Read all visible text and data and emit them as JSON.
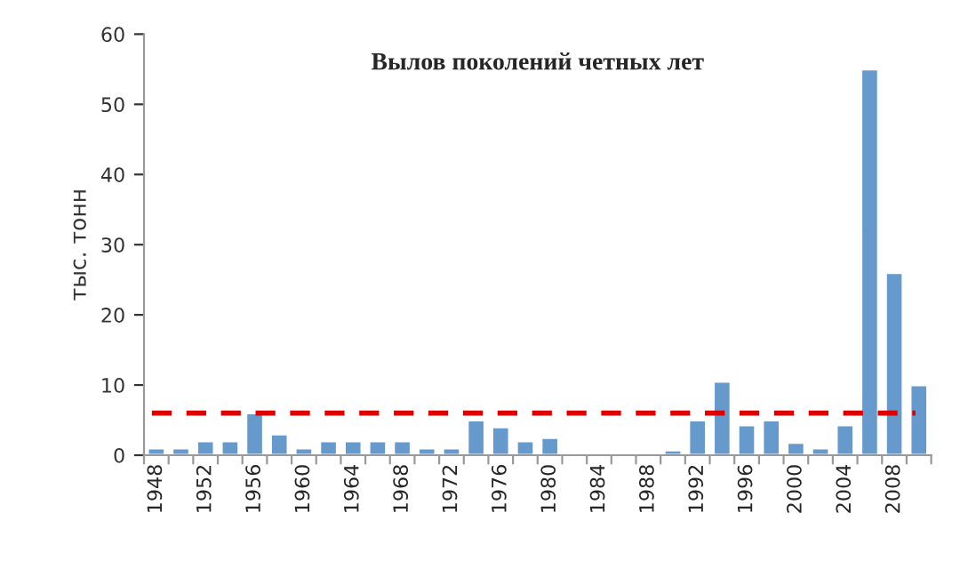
{
  "chart_data": {
    "type": "bar",
    "title": "Вылов поколений четных лет",
    "ylabel": "тыс. тонн",
    "categories": [
      "1948",
      null,
      "1952",
      null,
      "1956",
      null,
      "1960",
      null,
      "1964",
      null,
      "1968",
      null,
      "1972",
      null,
      "1976",
      null,
      "1980",
      null,
      "1984",
      null,
      "1988",
      null,
      "1992",
      null,
      "1996",
      null,
      "2000",
      null,
      "2004",
      null,
      "2008",
      null
    ],
    "values": [
      1,
      1,
      2,
      2,
      6,
      3,
      1,
      2,
      2,
      2,
      2,
      1,
      1,
      5,
      4,
      2,
      2.5,
      0.3,
      0.3,
      0.3,
      0.3,
      0.7,
      5,
      10.5,
      4.3,
      5,
      1.8,
      1,
      4.3,
      55,
      26,
      10
    ],
    "color": "#6699cc",
    "ylim": [
      0,
      60
    ],
    "yticks": [
      0,
      10,
      20,
      30,
      40,
      50,
      60
    ],
    "grid": false,
    "ref_lines": [
      {
        "axis": "y",
        "value": 6,
        "color": "#dd0000",
        "line_style": "dashed"
      }
    ]
  }
}
